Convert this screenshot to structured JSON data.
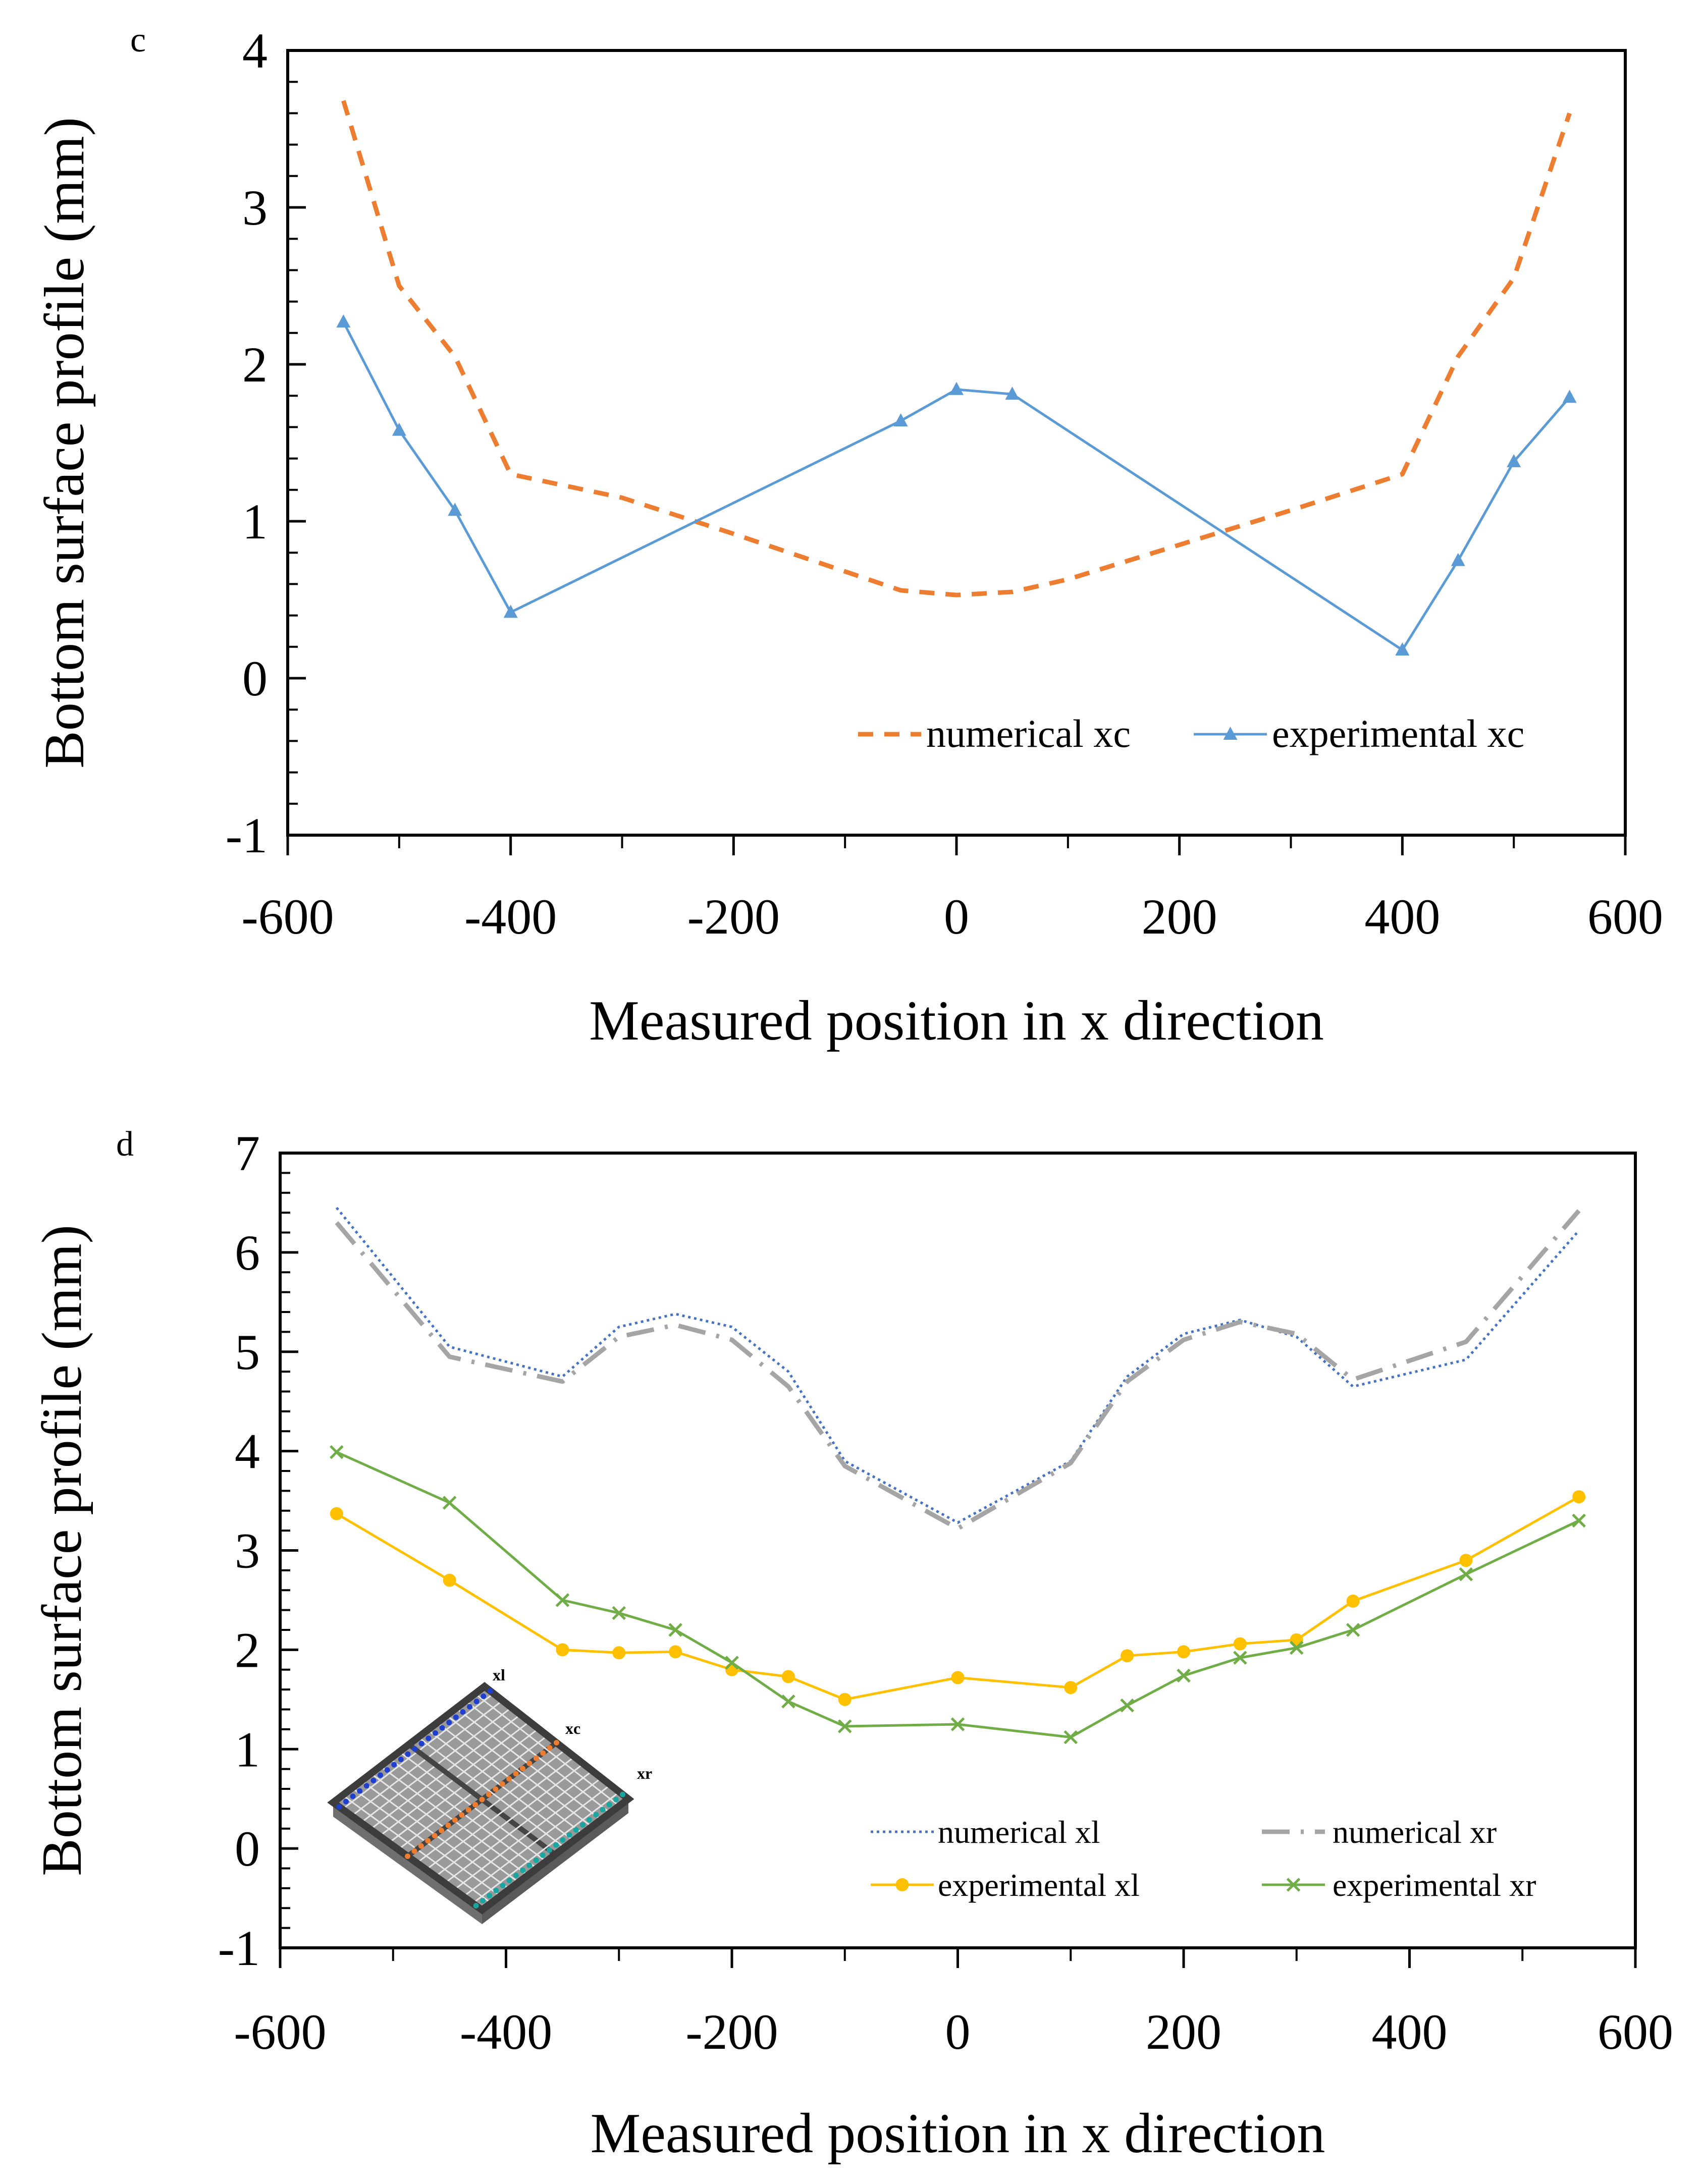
{
  "chart_data": [
    {
      "id": "c",
      "type": "line",
      "panel_label": "c",
      "title": "",
      "xlabel": "Measured position in x direction",
      "ylabel": "Bottom surface profile (mm)",
      "xlim": [
        -600,
        600
      ],
      "ylim": [
        -1,
        4
      ],
      "xticks": [
        "-600",
        "-400",
        "-200",
        "0",
        "200",
        "400",
        "600"
      ],
      "yticks": [
        "-1",
        "0",
        "1",
        "2",
        "3",
        "4"
      ],
      "legend_position": "bottom-right",
      "series": [
        {
          "name": "numerical xc",
          "style": "dashed",
          "color": "#ED7D31",
          "x": [
            -550,
            -500,
            -450,
            -400,
            -300,
            -200,
            -100,
            -50,
            0,
            50,
            100,
            200,
            300,
            400,
            450,
            500,
            550
          ],
          "y": [
            3.68,
            2.5,
            2.05,
            1.3,
            1.15,
            0.92,
            0.68,
            0.56,
            0.53,
            0.55,
            0.63,
            0.85,
            1.07,
            1.3,
            2.05,
            2.55,
            3.6
          ]
        },
        {
          "name": "experimental xc",
          "style": "solid-triangle",
          "color": "#5B9BD5",
          "x": [
            -550,
            -500,
            -450,
            -400,
            -50,
            0,
            50,
            400,
            450,
            500,
            550
          ],
          "y": [
            2.27,
            1.58,
            1.07,
            0.42,
            1.64,
            1.84,
            1.81,
            0.18,
            0.75,
            1.38,
            1.79
          ]
        }
      ]
    },
    {
      "id": "d",
      "type": "line",
      "panel_label": "d",
      "title": "",
      "xlabel": "Measured position in x direction",
      "ylabel": "Bottom surface profile (mm)",
      "xlim": [
        -600,
        600
      ],
      "ylim": [
        -1,
        7
      ],
      "xticks": [
        "-600",
        "-400",
        "-200",
        "0",
        "200",
        "400",
        "600"
      ],
      "yticks": [
        "-1",
        "0",
        "1",
        "2",
        "3",
        "4",
        "5",
        "6",
        "7"
      ],
      "legend_position": "bottom-right",
      "inset_labels": [
        "xl",
        "xc",
        "xr"
      ],
      "series": [
        {
          "name": "numerical xl",
          "style": "dotted",
          "color": "#4472C4",
          "x": [
            -550,
            -450,
            -350,
            -300,
            -250,
            -200,
            -150,
            -100,
            0,
            100,
            150,
            200,
            250,
            300,
            350,
            450,
            550
          ],
          "y": [
            6.45,
            5.05,
            4.75,
            5.25,
            5.38,
            5.25,
            4.8,
            3.9,
            3.28,
            3.9,
            4.75,
            5.18,
            5.32,
            5.15,
            4.65,
            4.92,
            6.22
          ]
        },
        {
          "name": "numerical xr",
          "style": "dash-dot",
          "color": "#A5A5A5",
          "x": [
            -550,
            -450,
            -350,
            -300,
            -250,
            -200,
            -150,
            -100,
            0,
            100,
            150,
            200,
            250,
            300,
            350,
            450,
            550
          ],
          "y": [
            6.3,
            4.95,
            4.7,
            5.15,
            5.27,
            5.12,
            4.65,
            3.85,
            3.22,
            3.88,
            4.7,
            5.12,
            5.3,
            5.18,
            4.72,
            5.1,
            6.42
          ]
        },
        {
          "name": "experimental xl",
          "style": "solid-circle",
          "color": "#FFC000",
          "x": [
            -550,
            -450,
            -350,
            -300,
            -250,
            -200,
            -150,
            -100,
            0,
            100,
            150,
            200,
            250,
            300,
            350,
            450,
            550
          ],
          "y": [
            3.37,
            2.7,
            2.0,
            1.97,
            1.98,
            1.8,
            1.73,
            1.5,
            1.72,
            1.62,
            1.94,
            1.98,
            2.06,
            2.1,
            2.49,
            2.9,
            3.54
          ]
        },
        {
          "name": "experimental xr",
          "style": "solid-cross",
          "color": "#70AD47",
          "x": [
            -550,
            -450,
            -350,
            -300,
            -250,
            -200,
            -150,
            -100,
            0,
            100,
            150,
            200,
            250,
            300,
            350,
            450,
            550
          ],
          "y": [
            3.99,
            3.48,
            2.5,
            2.37,
            2.2,
            1.87,
            1.48,
            1.23,
            1.25,
            1.12,
            1.44,
            1.74,
            1.92,
            2.02,
            2.2,
            2.76,
            3.3
          ]
        }
      ]
    }
  ]
}
